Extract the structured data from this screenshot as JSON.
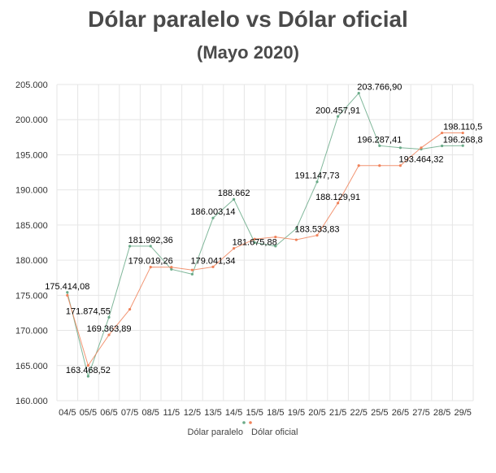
{
  "chart_data": {
    "type": "line",
    "title": "Dólar paralelo vs Dólar oficial",
    "subtitle": "(Mayo 2020)",
    "xlabel": "",
    "ylabel": "",
    "ylim": [
      160000,
      205000
    ],
    "yticks": [
      "160.000",
      "165.000",
      "170.000",
      "175.000",
      "180.000",
      "185.000",
      "190.000",
      "195.000",
      "200.000",
      "205.000"
    ],
    "categories": [
      "04/5",
      "05/5",
      "06/5",
      "07/5",
      "08/5",
      "11/5",
      "12/5",
      "13/5",
      "14/5",
      "15/5",
      "18/5",
      "19/5",
      "20/5",
      "21/5",
      "22/5",
      "25/5",
      "26/5",
      "27/5",
      "28/5",
      "29/5"
    ],
    "series": [
      {
        "name": "Dólar paralelo",
        "color": "#6aaa88",
        "values": [
          175414,
          163469,
          171875,
          181992,
          182000,
          178700,
          178000,
          186003,
          188662,
          182500,
          182000,
          184500,
          191148,
          200458,
          203767,
          196287,
          196000,
          195800,
          196269,
          196300
        ]
      },
      {
        "name": "Dólar oficial",
        "color": "#f0825a",
        "values": [
          175000,
          165000,
          169364,
          173000,
          179019,
          179000,
          178600,
          179041,
          181676,
          183000,
          183300,
          182900,
          183534,
          188130,
          193464,
          193464,
          193464,
          196000,
          198111,
          198111
        ]
      }
    ],
    "data_labels": [
      {
        "text": "175.414,08",
        "cat": 0,
        "value": 175414
      },
      {
        "text": "171.874,55",
        "cat": 1,
        "value": 171875
      },
      {
        "text": "163.468,52",
        "cat": 1,
        "value": 163469
      },
      {
        "text": "169.363,89",
        "cat": 2,
        "value": 169364
      },
      {
        "text": "181.992,36",
        "cat": 4,
        "value": 181992
      },
      {
        "text": "179.019,26",
        "cat": 4,
        "value": 179019
      },
      {
        "text": "179.041,34",
        "cat": 7,
        "value": 179041
      },
      {
        "text": "186.003,14",
        "cat": 7,
        "value": 186003
      },
      {
        "text": "188.662",
        "cat": 8,
        "value": 188662
      },
      {
        "text": "181.675,88",
        "cat": 9,
        "value": 181676
      },
      {
        "text": "183.533,83",
        "cat": 12,
        "value": 183534
      },
      {
        "text": "191.147,73",
        "cat": 12,
        "value": 191148
      },
      {
        "text": "188.129,91",
        "cat": 13,
        "value": 188130
      },
      {
        "text": "200.457,91",
        "cat": 13,
        "value": 200458
      },
      {
        "text": "203.766,90",
        "cat": 15,
        "value": 203767
      },
      {
        "text": "196.287,41",
        "cat": 15,
        "value": 196287
      },
      {
        "text": "193.464,32",
        "cat": 17,
        "value": 193464
      },
      {
        "text": "198.110,5",
        "cat": 19,
        "value": 198111
      },
      {
        "text": "196.268,8",
        "cat": 19,
        "value": 196269
      }
    ],
    "grid": true,
    "legend_position": "bottom-center"
  }
}
